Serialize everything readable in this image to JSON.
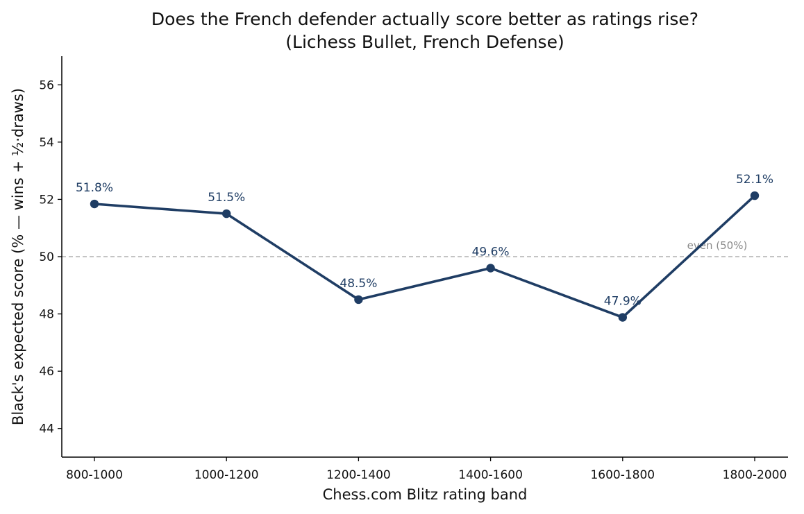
{
  "chart_data": {
    "type": "line",
    "title": "Does the French defender actually score better as ratings rise?",
    "subtitle": "(Lichess Bullet, French Defense)",
    "xlabel": "Chess.com Blitz rating band",
    "ylabel": "Black's expected score (% — wins + ½·draws)",
    "categories": [
      "800-1000",
      "1000-1200",
      "1200-1400",
      "1400-1600",
      "1600-1800",
      "1800-2000"
    ],
    "series": [
      {
        "values": [
          51.84,
          51.5,
          48.5,
          49.6,
          47.88,
          52.13
        ],
        "labels": [
          "51.8%",
          "51.5%",
          "48.5%",
          "49.6%",
          "47.9%",
          "52.1%"
        ],
        "color": "#1f3d64"
      }
    ],
    "ylim": [
      43,
      57
    ],
    "yticks": [
      44,
      46,
      48,
      50,
      52,
      54,
      56
    ],
    "reference_line": {
      "value": 50,
      "label": "even (50%)",
      "color": "#b0b0b0",
      "label_color": "#8a8a8a"
    },
    "grid": false,
    "legend": "none"
  }
}
